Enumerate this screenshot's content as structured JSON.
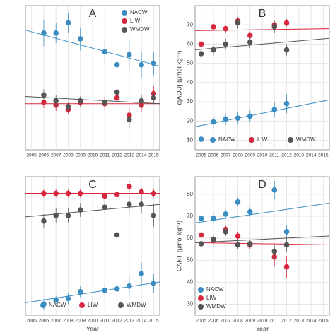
{
  "chart_data": [
    {
      "type": "scatter",
      "label": "A",
      "legend": "upper right",
      "grid": true,
      "x": [
        2005,
        2006,
        2007,
        2008,
        2009,
        2010,
        2011,
        2012,
        2013,
        2014,
        2015
      ],
      "xlim": [
        2004.5,
        2015.5
      ],
      "xticks": [
        2005,
        2006,
        2007,
        2008,
        2009,
        2010,
        2011,
        2012,
        2013,
        2014,
        2015
      ],
      "ylim": [
        0,
        100
      ],
      "series": [
        {
          "name": "NACW",
          "color": "#3a8cc1",
          "values": [
            null,
            81,
            81,
            88,
            77,
            null,
            68,
            59,
            66,
            59,
            60
          ],
          "errors": [
            null,
            9,
            7,
            7,
            8,
            null,
            9,
            8,
            10,
            9,
            8
          ],
          "fit": [
            83,
            58
          ]
        },
        {
          "name": "LIW",
          "color": "#d7263d",
          "values": [
            null,
            33,
            31,
            28,
            33,
            null,
            32,
            36,
            24,
            31,
            39
          ],
          "errors": [
            null,
            4,
            4,
            3,
            3,
            null,
            5,
            5,
            6,
            5,
            5
          ],
          "fit": [
            32,
            32
          ]
        },
        {
          "name": "WMDW",
          "color": "#555555",
          "values": [
            null,
            38,
            34,
            30,
            34,
            null,
            33,
            40,
            21,
            34,
            36
          ],
          "errors": [
            null,
            4,
            4,
            3,
            3,
            null,
            4,
            4,
            6,
            4,
            4
          ],
          "fit": [
            37,
            32
          ]
        }
      ]
    },
    {
      "type": "scatter",
      "label": "B",
      "legend": "lower center",
      "grid": true,
      "ylabel": "c[AOU] (μmol kg⁻¹)",
      "x": [
        2005,
        2006,
        2007,
        2008,
        2009,
        2010,
        2011,
        2012,
        2013,
        2014,
        2015
      ],
      "xlim": [
        2004.5,
        2015.5
      ],
      "xticks": [
        2005,
        2006,
        2007,
        2008,
        2009,
        2010,
        2011,
        2012,
        2013,
        2014,
        2015
      ],
      "ylim": [
        5,
        80
      ],
      "yticks": [
        10,
        20,
        30,
        40,
        50,
        60,
        70
      ],
      "series": [
        {
          "name": "NACW",
          "color": "#3a8cc1",
          "values": [
            10.5,
            19.5,
            21,
            21.5,
            22.5,
            null,
            26,
            29,
            null,
            null,
            null
          ],
          "errors": [
            3,
            3,
            3,
            3,
            3,
            null,
            4,
            5,
            null,
            null,
            null
          ],
          "fit": [
            17,
            31
          ]
        },
        {
          "name": "LIW",
          "color": "#d7263d",
          "values": [
            60,
            69,
            68,
            72,
            64.5,
            null,
            70,
            71,
            null,
            null,
            null
          ],
          "errors": [
            2,
            2,
            2,
            2,
            2,
            null,
            2,
            2,
            null,
            null,
            null
          ],
          "fit": [
            67,
            68
          ]
        },
        {
          "name": "WMDW",
          "color": "#555555",
          "values": [
            55,
            57,
            60,
            71,
            61,
            null,
            69,
            57,
            null,
            null,
            null
          ],
          "errors": [
            3,
            3,
            3,
            3,
            3,
            null,
            3,
            3,
            null,
            null,
            null
          ],
          "fit": [
            57,
            63
          ]
        }
      ]
    },
    {
      "type": "scatter",
      "label": "C",
      "legend": "lower center",
      "grid": true,
      "xlabel": "Year",
      "x": [
        2005,
        2006,
        2007,
        2008,
        2009,
        2010,
        2011,
        2012,
        2013,
        2014,
        2015
      ],
      "xlim": [
        2004.5,
        2015.5
      ],
      "xticks": [
        2005,
        2006,
        2007,
        2008,
        2009,
        2010,
        2011,
        2012,
        2013,
        2014,
        2015
      ],
      "ylim": [
        0,
        100
      ],
      "series": [
        {
          "name": "NACW",
          "color": "#3a8cc1",
          "values": [
            null,
            8,
            11,
            12,
            17,
            null,
            18,
            19,
            21,
            30,
            23
          ],
          "errors": [
            null,
            4,
            3,
            4,
            4,
            null,
            5,
            6,
            7,
            8,
            7
          ],
          "fit": [
            9,
            24
          ]
        },
        {
          "name": "LIW",
          "color": "#d7263d",
          "values": [
            null,
            88,
            88,
            88,
            88,
            null,
            86,
            87,
            93,
            89,
            88
          ],
          "errors": [
            null,
            3,
            3,
            3,
            3,
            null,
            3,
            3,
            4,
            3,
            3
          ],
          "fit": [
            88,
            88
          ]
        },
        {
          "name": "WMDW",
          "color": "#555555",
          "values": [
            null,
            68,
            72,
            72,
            76,
            null,
            78,
            58,
            80,
            80,
            72
          ],
          "errors": [
            null,
            5,
            5,
            5,
            5,
            null,
            5,
            6,
            6,
            6,
            8
          ],
          "fit": [
            71,
            80
          ]
        }
      ]
    },
    {
      "type": "scatter",
      "label": "D",
      "legend": "lower left",
      "grid": true,
      "xlabel": "Year",
      "ylabel": "CANT (μmol kg⁻¹)",
      "x": [
        2005,
        2006,
        2007,
        2008,
        2009,
        2010,
        2011,
        2012,
        2013,
        2014,
        2015
      ],
      "xlim": [
        2004.5,
        2015.5
      ],
      "xticks": [
        2005,
        2006,
        2007,
        2008,
        2009,
        2010,
        2011,
        2012,
        2013,
        2014,
        2015
      ],
      "ylim": [
        25,
        88
      ],
      "yticks": [
        30,
        40,
        50,
        60,
        70,
        80
      ],
      "series": [
        {
          "name": "NACW",
          "color": "#3a8cc1",
          "values": [
            69,
            69,
            71,
            76.5,
            72,
            null,
            82,
            63,
            null,
            null,
            null
          ],
          "errors": [
            2,
            2,
            2,
            2,
            2,
            null,
            4,
            3,
            null,
            null,
            null
          ],
          "fit": [
            67,
            76
          ]
        },
        {
          "name": "LIW",
          "color": "#d7263d",
          "values": [
            61.5,
            59,
            64,
            61,
            57,
            null,
            51.5,
            47,
            null,
            null,
            null
          ],
          "errors": [
            2,
            2,
            2,
            2,
            2,
            null,
            4,
            5,
            null,
            null,
            null
          ],
          "fit": [
            58,
            57
          ]
        },
        {
          "name": "WMDW",
          "color": "#555555",
          "values": [
            57.5,
            59.5,
            63,
            57,
            57.5,
            null,
            54,
            57,
            null,
            null,
            null
          ],
          "errors": [
            2,
            2,
            2,
            2,
            2,
            null,
            3,
            3,
            null,
            null,
            null
          ],
          "fit": [
            58,
            61
          ]
        }
      ]
    }
  ]
}
